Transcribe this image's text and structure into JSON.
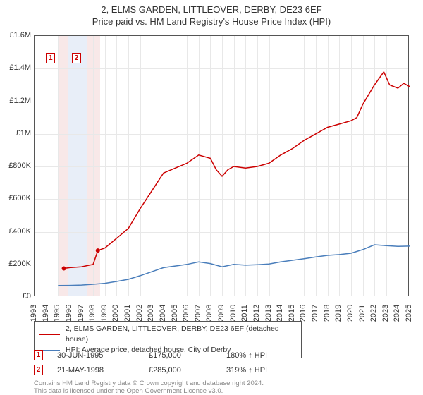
{
  "title": {
    "line1": "2, ELMS GARDEN, LITTLEOVER, DERBY, DE23 6EF",
    "line2": "Price paid vs. HM Land Registry's House Price Index (HPI)"
  },
  "chart": {
    "type": "line",
    "background_color": "#ffffff",
    "grid_color": "#e8e8e8",
    "border_color": "#555555",
    "axis_font_size": 11,
    "title_font_size": 13,
    "x": {
      "min": 1993,
      "max": 2025,
      "ticks": [
        1993,
        1994,
        1995,
        1996,
        1997,
        1998,
        1999,
        2000,
        2001,
        2002,
        2003,
        2004,
        2005,
        2006,
        2007,
        2008,
        2009,
        2010,
        2011,
        2012,
        2013,
        2014,
        2015,
        2016,
        2017,
        2018,
        2019,
        2020,
        2021,
        2022,
        2023,
        2024,
        2025
      ]
    },
    "y": {
      "min": 0,
      "max": 1600000,
      "ticks": [
        0,
        200000,
        400000,
        600000,
        800000,
        1000000,
        1200000,
        1400000,
        1600000
      ],
      "tick_labels": [
        "£0",
        "£200K",
        "£400K",
        "£600K",
        "£800K",
        "£1M",
        "£1.2M",
        "£1.4M",
        "£1.6M"
      ]
    },
    "shade_bands": [
      {
        "start": 1995.0,
        "end": 1995.9,
        "color": "#f8e8e8"
      },
      {
        "start": 1995.9,
        "end": 1997.5,
        "color": "#e8eef8"
      },
      {
        "start": 1997.5,
        "end": 1998.6,
        "color": "#f8e8e8"
      }
    ],
    "series": [
      {
        "name": "price_paid",
        "label": "2, ELMS GARDEN, LITTLEOVER, DERBY, DE23 6EF (detached house)",
        "color": "#cc0000",
        "line_width": 1.5,
        "points": [
          [
            1995.5,
            175000
          ],
          [
            1996,
            180000
          ],
          [
            1997,
            185000
          ],
          [
            1998,
            200000
          ],
          [
            1998.4,
            285000
          ],
          [
            1999,
            300000
          ],
          [
            2000,
            360000
          ],
          [
            2001,
            420000
          ],
          [
            2002,
            540000
          ],
          [
            2003,
            650000
          ],
          [
            2004,
            760000
          ],
          [
            2005,
            790000
          ],
          [
            2006,
            820000
          ],
          [
            2007,
            870000
          ],
          [
            2008,
            850000
          ],
          [
            2008.5,
            780000
          ],
          [
            2009,
            740000
          ],
          [
            2009.5,
            780000
          ],
          [
            2010,
            800000
          ],
          [
            2011,
            790000
          ],
          [
            2012,
            800000
          ],
          [
            2013,
            820000
          ],
          [
            2014,
            870000
          ],
          [
            2015,
            910000
          ],
          [
            2016,
            960000
          ],
          [
            2017,
            1000000
          ],
          [
            2018,
            1040000
          ],
          [
            2019,
            1060000
          ],
          [
            2020,
            1080000
          ],
          [
            2020.5,
            1100000
          ],
          [
            2021,
            1180000
          ],
          [
            2022,
            1300000
          ],
          [
            2022.8,
            1380000
          ],
          [
            2023.3,
            1300000
          ],
          [
            2024,
            1280000
          ],
          [
            2024.5,
            1310000
          ],
          [
            2025,
            1290000
          ]
        ]
      },
      {
        "name": "hpi",
        "label": "HPI: Average price, detached house, City of Derby",
        "color": "#4a7ebb",
        "line_width": 1.5,
        "points": [
          [
            1995,
            70000
          ],
          [
            1996,
            71000
          ],
          [
            1997,
            73000
          ],
          [
            1998,
            78000
          ],
          [
            1999,
            84000
          ],
          [
            2000,
            95000
          ],
          [
            2001,
            108000
          ],
          [
            2002,
            130000
          ],
          [
            2003,
            155000
          ],
          [
            2004,
            180000
          ],
          [
            2005,
            190000
          ],
          [
            2006,
            200000
          ],
          [
            2007,
            215000
          ],
          [
            2008,
            205000
          ],
          [
            2009,
            185000
          ],
          [
            2010,
            200000
          ],
          [
            2011,
            195000
          ],
          [
            2012,
            198000
          ],
          [
            2013,
            202000
          ],
          [
            2014,
            215000
          ],
          [
            2015,
            225000
          ],
          [
            2016,
            235000
          ],
          [
            2017,
            245000
          ],
          [
            2018,
            255000
          ],
          [
            2019,
            260000
          ],
          [
            2020,
            268000
          ],
          [
            2021,
            290000
          ],
          [
            2022,
            320000
          ],
          [
            2023,
            315000
          ],
          [
            2024,
            310000
          ],
          [
            2025,
            312000
          ]
        ]
      }
    ],
    "sale_markers": [
      {
        "id": "1",
        "x": 1995.5,
        "y": 175000,
        "color": "#cc0000"
      },
      {
        "id": "2",
        "x": 1998.4,
        "y": 285000,
        "color": "#cc0000"
      }
    ],
    "chart_marker_positions": [
      {
        "id": "1",
        "x": 1994.4,
        "color": "#cc0000"
      },
      {
        "id": "2",
        "x": 1996.6,
        "color": "#cc0000"
      }
    ]
  },
  "sales_table": {
    "rows": [
      {
        "marker": "1",
        "marker_color": "#cc0000",
        "date": "30-JUN-1995",
        "price": "£175,000",
        "ratio": "180% ↑ HPI"
      },
      {
        "marker": "2",
        "marker_color": "#cc0000",
        "date": "21-MAY-1998",
        "price": "£285,000",
        "ratio": "319% ↑ HPI"
      }
    ]
  },
  "attribution": {
    "line1": "Contains HM Land Registry data © Crown copyright and database right 2024.",
    "line2": "This data is licensed under the Open Government Licence v3.0."
  }
}
